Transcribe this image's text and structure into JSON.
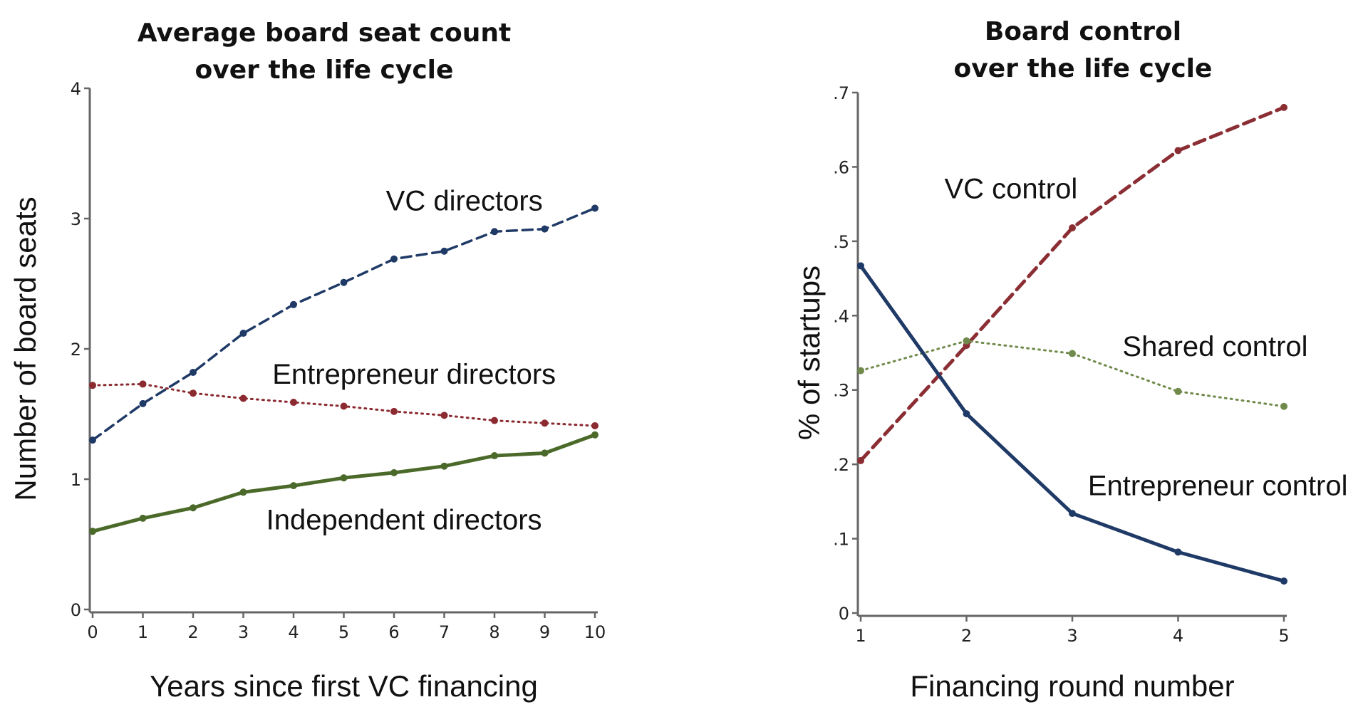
{
  "chart_data": [
    {
      "type": "line",
      "title": [
        "Average board seat count",
        "over the life cycle"
      ],
      "xlabel": "Years since first VC financing",
      "ylabel": "Number of board seats",
      "xlim": [
        0,
        10
      ],
      "ylim": [
        0,
        4
      ],
      "xticks": [
        0,
        1,
        2,
        3,
        4,
        5,
        6,
        7,
        8,
        9,
        10
      ],
      "yticks": [
        0,
        1,
        2,
        3,
        4
      ],
      "grid": false,
      "x": [
        0,
        1,
        2,
        3,
        4,
        5,
        6,
        7,
        8,
        9,
        10
      ],
      "series": [
        {
          "name": "VC directors",
          "style": "dashed",
          "color": "#1f3a66",
          "values": [
            1.3,
            1.58,
            1.82,
            2.12,
            2.34,
            2.51,
            2.69,
            2.75,
            2.9,
            2.92,
            3.08
          ],
          "label_at": [
            7.4,
            3.14
          ]
        },
        {
          "name": "Entrepreneur directors",
          "style": "dotted",
          "color": "#8b2a30",
          "values": [
            1.72,
            1.73,
            1.66,
            1.62,
            1.59,
            1.56,
            1.52,
            1.49,
            1.45,
            1.43,
            1.41
          ],
          "label_at": [
            6.4,
            1.81
          ]
        },
        {
          "name": "Independent directors",
          "style": "solid-thick",
          "color": "#4b6a2a",
          "values": [
            0.6,
            0.7,
            0.78,
            0.9,
            0.95,
            1.01,
            1.05,
            1.1,
            1.18,
            1.2,
            1.34
          ],
          "label_at": [
            6.2,
            0.69
          ]
        }
      ]
    },
    {
      "type": "line",
      "title": [
        "Board control",
        "over the life cycle"
      ],
      "xlabel": "Financing round number",
      "ylabel": "% of startups",
      "xlim": [
        1,
        5
      ],
      "ylim": [
        0,
        0.7
      ],
      "xticks": [
        1,
        2,
        3,
        4,
        5
      ],
      "yticks": [
        0,
        0.1,
        0.2,
        0.3,
        0.4,
        0.5,
        0.6,
        0.7
      ],
      "ytick_labels": [
        "0",
        ".1",
        ".2",
        ".3",
        ".4",
        ".5",
        ".6",
        ".7"
      ],
      "grid": false,
      "x": [
        1,
        2,
        3,
        4,
        5
      ],
      "series": [
        {
          "name": "VC control",
          "style": "dashed-thick",
          "color": "#8b2e34",
          "values": [
            0.205,
            0.36,
            0.518,
            0.622,
            0.68
          ],
          "label_at": [
            2.42,
            0.571
          ]
        },
        {
          "name": "Shared control",
          "style": "dotted",
          "color": "#6f8a4a",
          "values": [
            0.326,
            0.366,
            0.349,
            0.298,
            0.278
          ],
          "label_at": [
            4.35,
            0.359
          ]
        },
        {
          "name": "Entrepreneur control",
          "style": "solid-thick",
          "color": "#1f3a66",
          "values": [
            0.467,
            0.268,
            0.134,
            0.082,
            0.043
          ],
          "label_at": [
            4.375,
            0.172
          ]
        }
      ]
    }
  ]
}
